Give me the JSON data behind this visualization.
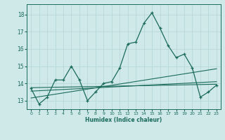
{
  "title": "",
  "xlabel": "Humidex (Indice chaleur)",
  "bg_color": "#cfe8e8",
  "grid_color": "#b8d8d8",
  "line_color": "#1a6b5a",
  "spine_color": "#1a6b5a",
  "xlim": [
    -0.5,
    23.5
  ],
  "ylim": [
    12.5,
    18.6
  ],
  "xticks": [
    0,
    1,
    2,
    3,
    4,
    5,
    6,
    7,
    8,
    9,
    10,
    11,
    12,
    13,
    14,
    15,
    16,
    17,
    18,
    19,
    20,
    21,
    22,
    23
  ],
  "yticks": [
    13,
    14,
    15,
    16,
    17,
    18
  ],
  "main_x": [
    0,
    1,
    2,
    3,
    4,
    5,
    6,
    7,
    8,
    9,
    10,
    11,
    12,
    13,
    14,
    15,
    16,
    17,
    18,
    19,
    20,
    21,
    22,
    23
  ],
  "main_y": [
    13.7,
    12.8,
    13.2,
    14.2,
    14.2,
    15.0,
    14.2,
    13.0,
    13.5,
    14.0,
    14.1,
    14.9,
    16.3,
    16.4,
    17.5,
    18.1,
    17.2,
    16.2,
    15.5,
    15.7,
    14.9,
    13.2,
    13.5,
    13.9
  ],
  "trend1_x": [
    0,
    23
  ],
  "trend1_y": [
    13.15,
    14.85
  ],
  "trend2_x": [
    0,
    23
  ],
  "trend2_y": [
    13.55,
    14.1
  ],
  "trend3_x": [
    0,
    23
  ],
  "trend3_y": [
    13.75,
    13.95
  ]
}
